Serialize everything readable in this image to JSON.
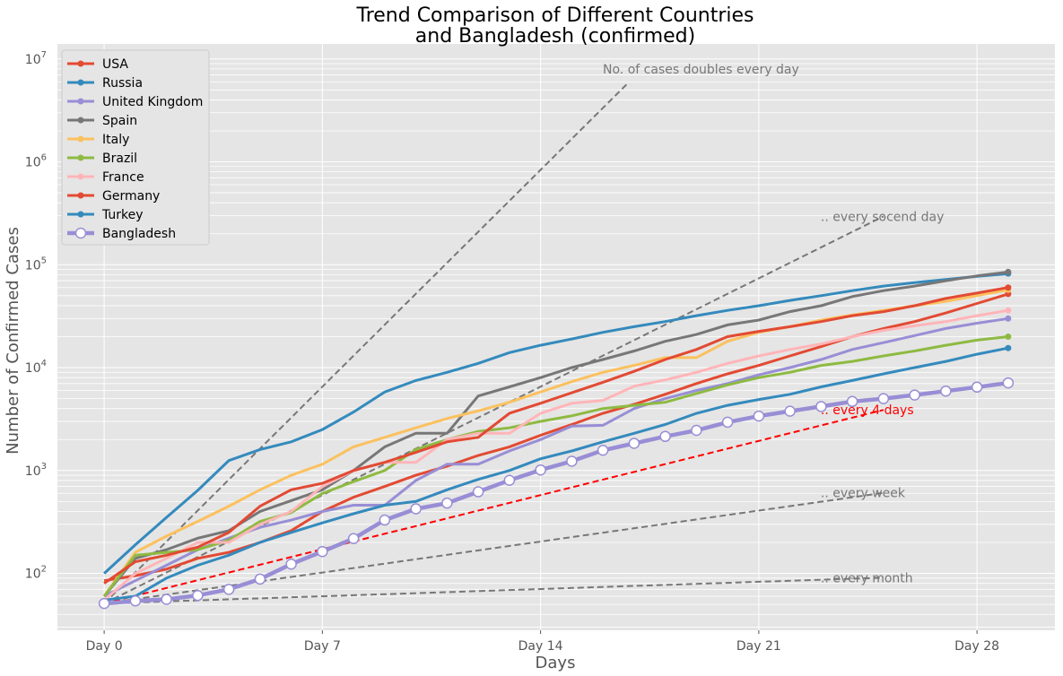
{
  "chart_data": {
    "type": "line",
    "title_lines": [
      "Trend Comparison of Different Countries",
      "and Bangladesh (confirmed)"
    ],
    "xlabel": "Days",
    "ylabel": "Number of Confirmed Cases",
    "xlim": [
      -1.5,
      30.5
    ],
    "ylim": [
      28,
      14000000
    ],
    "yscale": "log",
    "grid": true,
    "legend_position": "top-left",
    "x_ticks": [
      {
        "value": 0,
        "label": "Day 0"
      },
      {
        "value": 7,
        "label": "Day 7"
      },
      {
        "value": 14,
        "label": "Day 14"
      },
      {
        "value": 21,
        "label": "Day 21"
      },
      {
        "value": 28,
        "label": "Day 28"
      }
    ],
    "y_ticks": [
      {
        "value": 100,
        "base": "10",
        "exp": "2"
      },
      {
        "value": 1000,
        "base": "10",
        "exp": "3"
      },
      {
        "value": 10000,
        "base": "10",
        "exp": "4"
      },
      {
        "value": 100000,
        "base": "10",
        "exp": "5"
      },
      {
        "value": 1000000,
        "base": "10",
        "exp": "6"
      },
      {
        "value": 10000000,
        "base": "10",
        "exp": "7"
      }
    ],
    "series": [
      {
        "name": "USA",
        "color": "#E24A33",
        "values": [
          85,
          95,
          110,
          140,
          160,
          200,
          260,
          400,
          550,
          700,
          900,
          1100,
          1400,
          1700,
          2200,
          2800,
          3600,
          4400,
          5500,
          7000,
          8700,
          10500,
          13000,
          16000,
          20000,
          24000,
          28000,
          34000,
          42000,
          52000,
          62000,
          62000
        ]
      },
      {
        "name": "Russia",
        "color": "#348ABD",
        "values": [
          100,
          190,
          350,
          640,
          1250,
          1600,
          1900,
          2500,
          3700,
          5800,
          7500,
          9000,
          11000,
          14000,
          16500,
          19000,
          22000,
          25000,
          28000,
          32000,
          36000,
          40000,
          45000,
          50000,
          56000,
          62000,
          67000,
          72000,
          77000,
          82000,
          75000,
          75000
        ]
      },
      {
        "name": "United Kingdom",
        "color": "#988ED5",
        "values": [
          60,
          85,
          120,
          170,
          220,
          280,
          330,
          400,
          460,
          460,
          800,
          1150,
          1150,
          1550,
          2000,
          2700,
          2750,
          4000,
          5000,
          6000,
          7000,
          8500,
          10000,
          12000,
          15000,
          17500,
          20500,
          24000,
          27000,
          30000,
          30000,
          30000
        ]
      },
      {
        "name": "Spain",
        "color": "#777777",
        "values": [
          60,
          140,
          170,
          220,
          260,
          400,
          510,
          650,
          1000,
          1700,
          2300,
          2300,
          5300,
          6500,
          8000,
          10000,
          12000,
          14500,
          18000,
          21000,
          26000,
          29000,
          35000,
          40000,
          49000,
          56000,
          62000,
          70000,
          78000,
          85000,
          88000,
          88000
        ]
      },
      {
        "name": "Italy",
        "color": "#FBC15E",
        "values": [
          60,
          160,
          230,
          320,
          450,
          650,
          900,
          1150,
          1700,
          2100,
          2600,
          3200,
          3800,
          4600,
          5800,
          7300,
          9000,
          10500,
          12500,
          12500,
          18000,
          22000,
          25000,
          29000,
          32500,
          36000,
          40000,
          44000,
          50000,
          57000,
          59000,
          59000
        ]
      },
      {
        "name": "Brazil",
        "color": "#8EBA42",
        "values": [
          60,
          150,
          160,
          170,
          210,
          320,
          390,
          600,
          780,
          1000,
          1600,
          2000,
          2400,
          2600,
          3000,
          3400,
          4000,
          4300,
          4600,
          5600,
          6800,
          8000,
          9000,
          10500,
          11500,
          13000,
          14500,
          16500,
          18500,
          20000,
          20000,
          20000
        ]
      },
      {
        "name": "France",
        "color": "#FFB5B8",
        "values": [
          55,
          100,
          140,
          200,
          200,
          300,
          400,
          700,
          1000,
          1200,
          1200,
          2000,
          2300,
          2300,
          3600,
          4500,
          4800,
          6600,
          7600,
          9000,
          11000,
          13000,
          15000,
          17000,
          20000,
          23000,
          25500,
          28000,
          32000,
          36000,
          38000,
          38000
        ]
      },
      {
        "name": "Germany",
        "color": "#E24A33",
        "values": [
          80,
          130,
          150,
          180,
          250,
          450,
          650,
          750,
          1000,
          1200,
          1500,
          1900,
          2100,
          3600,
          4500,
          5700,
          7200,
          9200,
          12000,
          15000,
          20000,
          22500,
          25000,
          28000,
          32000,
          35000,
          40000,
          47000,
          53000,
          60000,
          62000,
          62000
        ]
      },
      {
        "name": "Turkey",
        "color": "#348ABD",
        "values": [
          55,
          60,
          90,
          120,
          150,
          200,
          250,
          310,
          380,
          460,
          500,
          650,
          820,
          1000,
          1300,
          1550,
          1900,
          2300,
          2800,
          3600,
          4300,
          4900,
          5500,
          6500,
          7500,
          8700,
          10000,
          11500,
          13500,
          15500,
          16000,
          16000
        ]
      },
      {
        "name": "Bangladesh",
        "color": "#988ED5",
        "marker": "open-circle",
        "values": [
          51,
          54,
          56,
          61,
          70,
          88,
          123,
          163,
          218,
          330,
          424,
          482,
          621,
          803,
          1012,
          1231,
          1572,
          1838,
          2144,
          2456,
          2948,
          3382,
          3772,
          4186,
          4689,
          4998,
          5416,
          5913,
          6462,
          7103,
          7103,
          7103
        ]
      }
    ],
    "reference_lines": [
      {
        "label": "No. of cases doubles every day",
        "doubling_days": 1,
        "x_end": 16.8,
        "color": "#777777"
      },
      {
        "label": ".. every socend day",
        "doubling_days": 2,
        "x_end": 25,
        "color": "#777777"
      },
      {
        "label": ".. every 4 days",
        "doubling_days": 4,
        "x_end": 25,
        "color": "#FF0000"
      },
      {
        "label": ".. every week",
        "doubling_days": 7,
        "x_end": 25,
        "color": "#777777"
      },
      {
        "label": ".. every month",
        "doubling_days": 30,
        "x_end": 25,
        "color": "#777777"
      }
    ],
    "reference_start": 51
  }
}
